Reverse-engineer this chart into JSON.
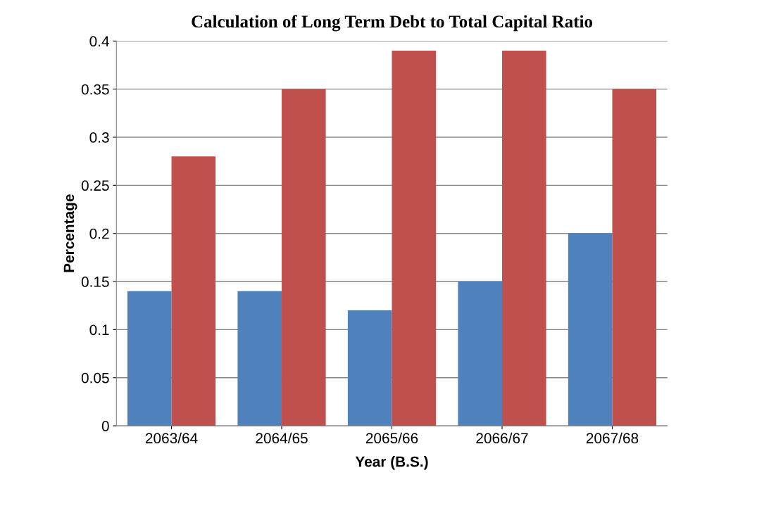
{
  "chart_data": {
    "type": "bar",
    "title": "Calculation of Long Term Debt to Total Capital Ratio",
    "xlabel": "Year (B.S.)",
    "ylabel": "Percentage",
    "categories": [
      "2063/64",
      "2064/65",
      "2065/66",
      "2066/67",
      "2067/68"
    ],
    "series": [
      {
        "color": "#4f81bd",
        "values": [
          0.14,
          0.14,
          0.12,
          0.15,
          0.2
        ]
      },
      {
        "color": "#c0504d",
        "values": [
          0.28,
          0.35,
          0.39,
          0.39,
          0.35
        ]
      }
    ],
    "ylim": [
      0,
      0.4
    ],
    "yticks": [
      0,
      0.05,
      0.1,
      0.15,
      0.2,
      0.25,
      0.3,
      0.35,
      0.4
    ],
    "grid": "y"
  }
}
